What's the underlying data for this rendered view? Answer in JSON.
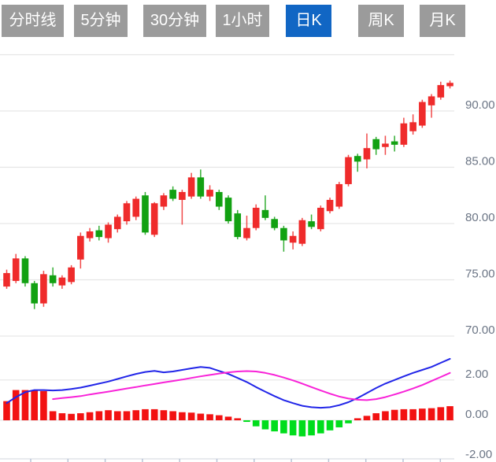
{
  "toolbar": {
    "active_index": 4,
    "tabs": [
      {
        "id": "time-line",
        "label": "分时线"
      },
      {
        "id": "5min",
        "label": "5分钟"
      },
      {
        "id": "30min",
        "label": "30分钟"
      },
      {
        "id": "1hour",
        "label": "1小时"
      },
      {
        "id": "daily-k",
        "label": "日K"
      },
      {
        "id": "weekly-k",
        "label": "周K"
      },
      {
        "id": "monthly-k",
        "label": "月K"
      }
    ]
  },
  "colors": {
    "up": "#ef2b2b",
    "down": "#12a112",
    "hist_up": "#f21212",
    "hist_down": "#00dd1c",
    "dif_line": "#2125e8",
    "dea_line": "#f822d8",
    "grid": "#e6e6e6",
    "axis_text": "#6b7585",
    "tab_bg": "#9b9b9b",
    "tab_active_bg": "#1166c4",
    "tab_text": "#ffffff",
    "x_tick": "#b8c3d6",
    "x_baseline": "#d9dde3"
  },
  "chart_data": {
    "type": "candlestick",
    "style_note": "Chinese convention: red = up candle, green = down candle",
    "price_panel": {
      "y_axis": {
        "labels": [
          "90.00",
          "85.00",
          "80.00",
          "75.00",
          "70.00"
        ],
        "values": [
          90,
          85,
          80,
          75,
          70
        ],
        "unlabeled_gridlines": [
          95
        ],
        "ylim": [
          68.5,
          95.0
        ],
        "position": "right"
      },
      "candles_ohlc": [
        [
          74.4,
          75.9,
          74.2,
          75.6
        ],
        [
          74.9,
          77.3,
          74.7,
          76.9
        ],
        [
          76.9,
          77.1,
          74.4,
          74.7
        ],
        [
          74.7,
          74.9,
          72.4,
          72.9
        ],
        [
          72.9,
          75.8,
          72.6,
          75.5
        ],
        [
          75.4,
          76.1,
          74.4,
          74.7
        ],
        [
          74.5,
          75.4,
          74.2,
          75.2
        ],
        [
          74.8,
          76.3,
          74.6,
          76.1
        ],
        [
          76.8,
          79.2,
          76.0,
          78.9
        ],
        [
          78.7,
          79.6,
          78.4,
          79.3
        ],
        [
          79.4,
          79.8,
          78.5,
          78.8
        ],
        [
          78.7,
          80.1,
          78.3,
          79.9
        ],
        [
          79.5,
          80.8,
          79.2,
          80.6
        ],
        [
          80.2,
          82.0,
          79.9,
          81.8
        ],
        [
          80.6,
          82.4,
          80.3,
          82.2
        ],
        [
          82.5,
          82.8,
          79.0,
          79.2
        ],
        [
          79.0,
          81.9,
          78.8,
          81.8
        ],
        [
          81.5,
          82.7,
          81.2,
          82.5
        ],
        [
          83.0,
          83.3,
          82.0,
          82.2
        ],
        [
          82.1,
          83.0,
          79.9,
          82.8
        ],
        [
          82.4,
          84.5,
          82.2,
          84.1
        ],
        [
          84.1,
          84.8,
          82.2,
          82.4
        ],
        [
          82.4,
          83.4,
          82.0,
          83.0
        ],
        [
          82.8,
          83.0,
          81.2,
          81.5
        ],
        [
          82.3,
          82.5,
          80.0,
          80.2
        ],
        [
          80.9,
          81.2,
          78.6,
          78.8
        ],
        [
          78.7,
          80.7,
          78.5,
          79.6
        ],
        [
          79.6,
          81.7,
          79.4,
          81.4
        ],
        [
          81.2,
          82.5,
          80.3,
          80.5
        ],
        [
          80.4,
          80.6,
          79.4,
          79.6
        ],
        [
          79.6,
          79.8,
          77.5,
          78.5
        ],
        [
          78.3,
          79.3,
          77.7,
          78.9
        ],
        [
          78.2,
          80.5,
          78.0,
          80.3
        ],
        [
          80.2,
          80.8,
          79.5,
          79.7
        ],
        [
          79.5,
          81.6,
          79.3,
          81.4
        ],
        [
          81.1,
          82.3,
          80.9,
          82.1
        ],
        [
          81.5,
          83.7,
          81.3,
          83.5
        ],
        [
          83.5,
          86.1,
          83.3,
          85.9
        ],
        [
          86.0,
          86.2,
          84.6,
          85.5
        ],
        [
          85.7,
          88.0,
          84.9,
          86.7
        ],
        [
          87.5,
          87.7,
          86.1,
          86.6
        ],
        [
          86.8,
          87.8,
          86.1,
          87.1
        ],
        [
          87.3,
          87.8,
          86.4,
          87.0
        ],
        [
          87.0,
          89.4,
          86.8,
          88.9
        ],
        [
          88.2,
          89.7,
          87.9,
          89.0
        ],
        [
          88.7,
          91.0,
          88.5,
          90.8
        ],
        [
          90.5,
          91.5,
          89.4,
          91.3
        ],
        [
          91.2,
          92.6,
          91.0,
          92.3
        ],
        [
          92.2,
          92.7,
          92.0,
          92.5
        ]
      ]
    },
    "macd_panel": {
      "y_axis": {
        "labels": [
          "2.00",
          "0.00",
          "-2.00"
        ],
        "values": [
          2,
          0,
          -2
        ],
        "ylim": [
          -2.1,
          3.3
        ],
        "position": "right"
      },
      "histogram": [
        0.95,
        1.5,
        1.5,
        1.5,
        1.45,
        0.45,
        0.35,
        0.32,
        0.35,
        0.4,
        0.45,
        0.5,
        0.45,
        0.45,
        0.5,
        0.55,
        0.55,
        0.5,
        0.45,
        0.4,
        0.38,
        0.33,
        0.3,
        0.25,
        0.18,
        0.1,
        -0.08,
        -0.3,
        -0.45,
        -0.55,
        -0.65,
        -0.75,
        -0.8,
        -0.75,
        -0.65,
        -0.5,
        -0.35,
        -0.15,
        0.1,
        0.22,
        0.35,
        0.45,
        0.52,
        0.55,
        0.55,
        0.58,
        0.6,
        0.65,
        0.7
      ],
      "dif": [
        0.85,
        1.15,
        1.4,
        1.5,
        1.5,
        1.48,
        1.5,
        1.55,
        1.62,
        1.72,
        1.82,
        1.92,
        2.05,
        2.18,
        2.3,
        2.4,
        2.45,
        2.38,
        2.42,
        2.5,
        2.58,
        2.65,
        2.6,
        2.45,
        2.3,
        2.1,
        1.9,
        1.65,
        1.42,
        1.2,
        1.0,
        0.85,
        0.72,
        0.65,
        0.62,
        0.65,
        0.75,
        0.9,
        1.1,
        1.35,
        1.6,
        1.82,
        2.0,
        2.18,
        2.35,
        2.5,
        2.65,
        2.85,
        3.05
      ],
      "dea": [
        null,
        null,
        null,
        null,
        null,
        1.05,
        1.1,
        1.15,
        1.2,
        1.28,
        1.35,
        1.42,
        1.5,
        1.58,
        1.65,
        1.73,
        1.8,
        1.88,
        1.95,
        2.02,
        2.1,
        2.18,
        2.25,
        2.32,
        2.38,
        2.42,
        2.44,
        2.42,
        2.35,
        2.25,
        2.12,
        1.98,
        1.82,
        1.65,
        1.48,
        1.32,
        1.18,
        1.08,
        1.02,
        1.0,
        1.05,
        1.15,
        1.28,
        1.42,
        1.58,
        1.75,
        1.95,
        2.15,
        2.35
      ]
    },
    "x_axis": {
      "labels": [],
      "tick_count": 12
    }
  }
}
